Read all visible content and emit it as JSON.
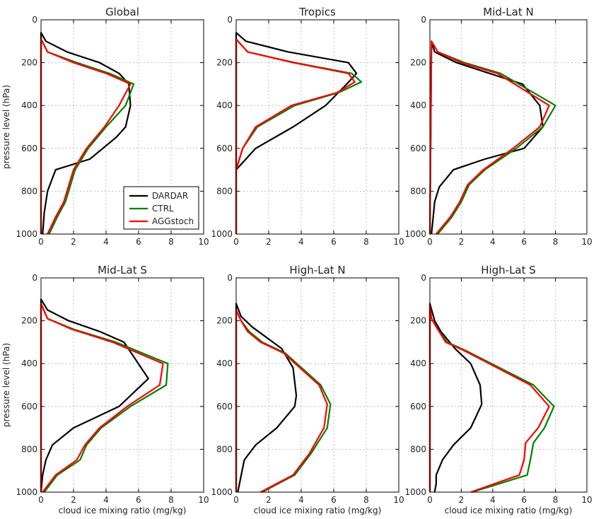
{
  "chart_data": [
    {
      "type": "line",
      "title": "Global",
      "xlabel": "",
      "ylabel": "pressure level (hPa)",
      "xlim": [
        0,
        10
      ],
      "ylim": [
        1000,
        0
      ],
      "grid": true,
      "legend": "bottom-right",
      "xticks": [
        "0",
        "2",
        "4",
        "6",
        "8",
        "10"
      ],
      "yticks": [
        "0",
        "200",
        "400",
        "600",
        "800",
        "1000"
      ],
      "series": [
        {
          "name": "DARDAR",
          "x": [
            0.0,
            0.0,
            0.3,
            1.6,
            3.6,
            4.8,
            5.4,
            5.5,
            5.2,
            4.6,
            3.0,
            0.9,
            0.4,
            0.2,
            0.1
          ],
          "y": [
            1000,
            60,
            100,
            150,
            200,
            250,
            300,
            400,
            500,
            550,
            650,
            700,
            800,
            900,
            1000
          ]
        },
        {
          "name": "CTRL",
          "x": [
            0.0,
            0.0,
            0.4,
            2.2,
            4.2,
            5.7,
            5.2,
            4.0,
            2.9,
            2.1,
            1.7,
            1.5,
            1.0,
            0.5
          ],
          "y": [
            1000,
            90,
            150,
            200,
            250,
            300,
            400,
            500,
            600,
            700,
            800,
            850,
            920,
            1000
          ]
        },
        {
          "name": "AGGstoch",
          "x": [
            0.0,
            0.0,
            0.4,
            2.0,
            4.0,
            5.5,
            4.8,
            3.9,
            2.8,
            2.0,
            1.6,
            1.4,
            0.9,
            0.4
          ],
          "y": [
            1000,
            90,
            150,
            200,
            250,
            300,
            400,
            500,
            600,
            700,
            800,
            850,
            920,
            1000
          ]
        }
      ]
    },
    {
      "type": "line",
      "title": "Tropics",
      "xlabel": "",
      "ylabel": "",
      "xlim": [
        0,
        10
      ],
      "ylim": [
        1000,
        0
      ],
      "grid": true,
      "xticks": [
        "0",
        "2",
        "4",
        "6",
        "8",
        "10"
      ],
      "yticks": [
        "0",
        "200",
        "400",
        "600",
        "800",
        "1000"
      ],
      "series": [
        {
          "name": "DARDAR",
          "x": [
            0.0,
            0.0,
            0.6,
            3.2,
            6.9,
            7.4,
            6.8,
            5.5,
            3.5,
            1.2,
            0.0,
            0.0
          ],
          "y": [
            1000,
            60,
            100,
            150,
            200,
            250,
            300,
            400,
            500,
            600,
            700,
            1000
          ]
        },
        {
          "name": "CTRL",
          "x": [
            0.0,
            0.0,
            0.7,
            3.6,
            7.1,
            7.7,
            6.3,
            3.6,
            1.3,
            0.4,
            0.0,
            0.0
          ],
          "y": [
            1000,
            90,
            150,
            200,
            250,
            290,
            340,
            400,
            500,
            600,
            700,
            1000
          ]
        },
        {
          "name": "AGGstoch",
          "x": [
            0.0,
            0.0,
            0.7,
            3.5,
            6.9,
            7.3,
            6.2,
            3.4,
            1.2,
            0.4,
            0.0,
            0.0
          ],
          "y": [
            1000,
            90,
            150,
            200,
            250,
            290,
            340,
            400,
            500,
            600,
            700,
            1000
          ]
        }
      ]
    },
    {
      "type": "line",
      "title": "Mid-Lat N",
      "xlabel": "",
      "ylabel": "",
      "xlim": [
        0,
        10
      ],
      "ylim": [
        1000,
        0
      ],
      "grid": true,
      "xticks": [
        "0",
        "2",
        "4",
        "6",
        "8",
        "10"
      ],
      "yticks": [
        "0",
        "200",
        "400",
        "600",
        "800",
        "1000"
      ],
      "series": [
        {
          "name": "DARDAR",
          "x": [
            0.0,
            0.1,
            0.3,
            1.7,
            3.8,
            5.9,
            7.0,
            7.2,
            6.0,
            3.5,
            1.5,
            0.6,
            0.3,
            0.2,
            0.1
          ],
          "y": [
            1000,
            100,
            150,
            200,
            250,
            300,
            400,
            500,
            600,
            650,
            700,
            780,
            850,
            930,
            1000
          ]
        },
        {
          "name": "CTRL",
          "x": [
            0.0,
            0.1,
            0.5,
            2.2,
            4.5,
            8.0,
            7.2,
            5.5,
            3.5,
            2.5,
            2.0,
            1.4,
            0.5
          ],
          "y": [
            1000,
            100,
            150,
            200,
            250,
            400,
            500,
            600,
            700,
            770,
            850,
            920,
            1000
          ]
        },
        {
          "name": "AGGstoch",
          "x": [
            0.0,
            0.1,
            0.5,
            2.0,
            4.3,
            7.6,
            7.0,
            5.3,
            3.4,
            2.4,
            1.9,
            1.3,
            0.4
          ],
          "y": [
            1000,
            100,
            150,
            200,
            250,
            400,
            500,
            600,
            700,
            770,
            850,
            920,
            1000
          ]
        }
      ]
    },
    {
      "type": "line",
      "title": "Mid-Lat S",
      "xlabel": "cloud ice mixing ratio (mg/kg)",
      "ylabel": "pressure level (hPa)",
      "xlim": [
        0,
        10
      ],
      "ylim": [
        1000,
        0
      ],
      "grid": true,
      "xticks": [
        "0",
        "2",
        "4",
        "6",
        "8",
        "10"
      ],
      "yticks": [
        "0",
        "200",
        "400",
        "600",
        "800",
        "1000"
      ],
      "series": [
        {
          "name": "DARDAR",
          "x": [
            0.0,
            0.0,
            0.4,
            1.7,
            3.6,
            5.1,
            6.6,
            4.8,
            2.0,
            0.7,
            0.3,
            0.1,
            0.0
          ],
          "y": [
            1000,
            100,
            150,
            200,
            250,
            300,
            470,
            600,
            700,
            780,
            850,
            920,
            1000
          ]
        },
        {
          "name": "CTRL",
          "x": [
            0.0,
            0.0,
            0.4,
            2.0,
            4.6,
            7.8,
            7.7,
            5.5,
            3.7,
            2.8,
            2.4,
            1.0,
            0.2
          ],
          "y": [
            1000,
            120,
            190,
            240,
            300,
            400,
            500,
            600,
            700,
            780,
            850,
            920,
            1000
          ]
        },
        {
          "name": "AGGstoch",
          "x": [
            0.0,
            0.0,
            0.4,
            1.9,
            4.4,
            7.5,
            7.3,
            5.3,
            3.6,
            2.7,
            2.2,
            0.9,
            0.1
          ],
          "y": [
            1000,
            120,
            190,
            240,
            300,
            400,
            500,
            600,
            700,
            780,
            850,
            920,
            1000
          ]
        }
      ]
    },
    {
      "type": "line",
      "title": "High-Lat N",
      "xlabel": "cloud ice mixing ratio (mg/kg)",
      "ylabel": "",
      "xlim": [
        0,
        10
      ],
      "ylim": [
        1000,
        0
      ],
      "grid": true,
      "xticks": [
        "0",
        "2",
        "4",
        "6",
        "8",
        "10"
      ],
      "yticks": [
        "0",
        "200",
        "400",
        "600",
        "800",
        "1000"
      ],
      "series": [
        {
          "name": "DARDAR",
          "x": [
            0.0,
            0.0,
            0.3,
            1.0,
            1.9,
            2.8,
            3.5,
            3.7,
            3.6,
            2.5,
            1.2,
            0.5,
            0.1
          ],
          "y": [
            1000,
            120,
            180,
            230,
            280,
            330,
            420,
            550,
            600,
            700,
            780,
            850,
            1000
          ]
        },
        {
          "name": "CTRL",
          "x": [
            0.0,
            0.0,
            0.3,
            0.8,
            1.6,
            3.0,
            5.2,
            5.8,
            5.6,
            4.6,
            3.6,
            1.6
          ],
          "y": [
            1000,
            150,
            200,
            250,
            300,
            350,
            500,
            590,
            700,
            820,
            920,
            1000
          ]
        },
        {
          "name": "AGGstoch",
          "x": [
            0.0,
            0.0,
            0.3,
            0.7,
            1.5,
            2.9,
            5.1,
            5.6,
            5.4,
            4.5,
            3.5,
            1.5
          ],
          "y": [
            1000,
            150,
            200,
            250,
            300,
            350,
            500,
            590,
            700,
            820,
            920,
            1000
          ]
        }
      ]
    },
    {
      "type": "line",
      "title": "High-Lat S",
      "xlabel": "cloud ice mixing ratio (mg/kg)",
      "ylabel": "",
      "xlim": [
        0,
        10
      ],
      "ylim": [
        1000,
        0
      ],
      "grid": true,
      "xticks": [
        "0",
        "2",
        "4",
        "6",
        "8",
        "10"
      ],
      "yticks": [
        "0",
        "200",
        "400",
        "600",
        "800",
        "1000"
      ],
      "series": [
        {
          "name": "DARDAR",
          "x": [
            0.0,
            0.0,
            0.3,
            0.7,
            1.6,
            2.6,
            3.2,
            3.3,
            2.6,
            1.5,
            0.8,
            0.4,
            0.4,
            0.3
          ],
          "y": [
            1000,
            120,
            200,
            250,
            330,
            400,
            500,
            590,
            700,
            780,
            850,
            920,
            960,
            1000
          ]
        },
        {
          "name": "CTRL",
          "x": [
            0.0,
            0.0,
            0.1,
            0.5,
            1.1,
            2.3,
            6.6,
            7.9,
            7.3,
            6.6,
            6.4,
            6.2,
            2.7
          ],
          "y": [
            1000,
            130,
            190,
            240,
            300,
            340,
            500,
            600,
            700,
            770,
            850,
            920,
            1000
          ]
        },
        {
          "name": "AGGstoch",
          "x": [
            0.0,
            0.0,
            0.1,
            0.5,
            1.0,
            2.2,
            6.4,
            7.6,
            6.9,
            6.1,
            6.0,
            5.7,
            2.6
          ],
          "y": [
            1000,
            130,
            190,
            240,
            300,
            340,
            500,
            600,
            700,
            770,
            850,
            920,
            1000
          ]
        }
      ]
    }
  ],
  "legend": {
    "entries": [
      {
        "label": "DARDAR",
        "color": "#000000"
      },
      {
        "label": "CTRL",
        "color": "#008000"
      },
      {
        "label": "AGGstoch",
        "color": "#ff0000"
      }
    ]
  },
  "colors": {
    "DARDAR": "#000000",
    "CTRL": "#008000",
    "AGGstoch": "#ff0000"
  }
}
